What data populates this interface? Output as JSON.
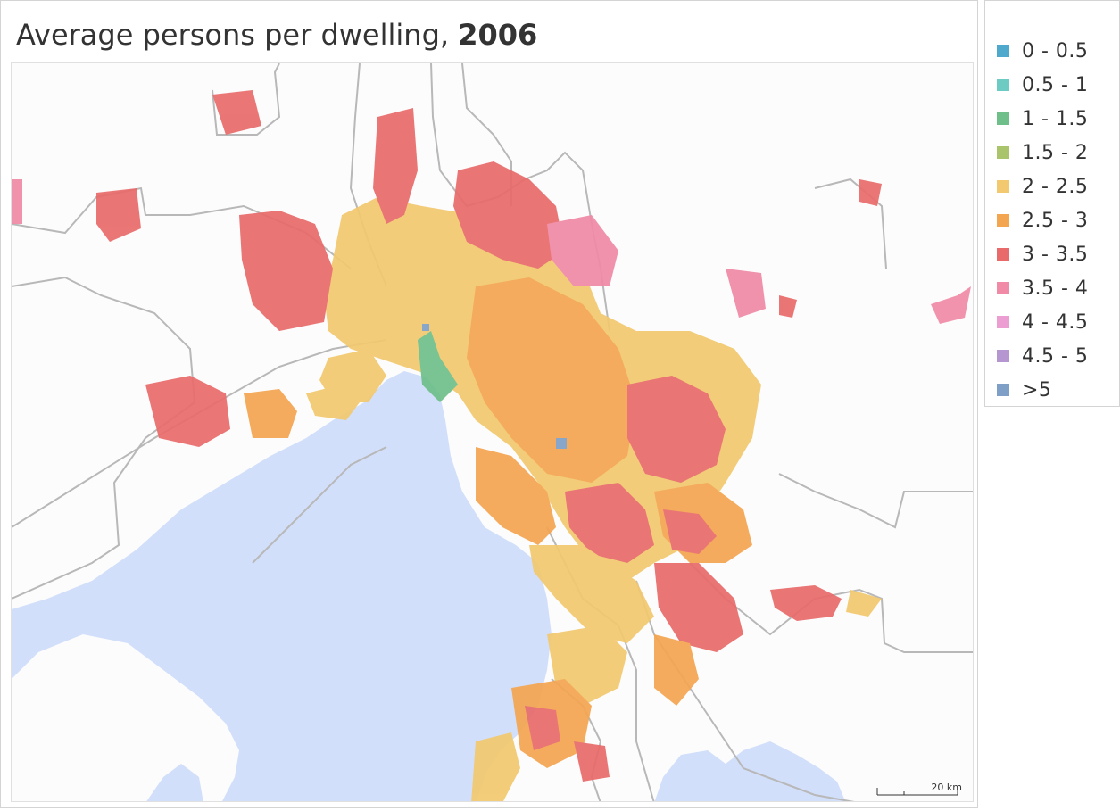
{
  "title": {
    "text": "Average persons per dwelling, ",
    "year": "2006"
  },
  "legend": {
    "items": [
      {
        "label": "0 - 0.5",
        "color": "#4fa9cd"
      },
      {
        "label": "0.5 - 1",
        "color": "#6cccc4"
      },
      {
        "label": "1 - 1.5",
        "color": "#6fbf8a"
      },
      {
        "label": "1.5 - 2",
        "color": "#a9c46a"
      },
      {
        "label": "2 - 2.5",
        "color": "#f2c96e"
      },
      {
        "label": "2.5 - 3",
        "color": "#f4a550"
      },
      {
        "label": "3 - 3.5",
        "color": "#e86a6a"
      },
      {
        "label": "3.5 - 4",
        "color": "#f08aa6"
      },
      {
        "label": "4 - 4.5",
        "color": "#ec9ed2"
      },
      {
        "label": "4.5 - 5",
        "color": "#b696d0"
      },
      {
        "label": ">5",
        "color": "#7f9fc6"
      }
    ]
  },
  "map": {
    "water_color": "#d2dffa",
    "boundary_color": "#b8b8b8",
    "scale_label": "20 km"
  }
}
